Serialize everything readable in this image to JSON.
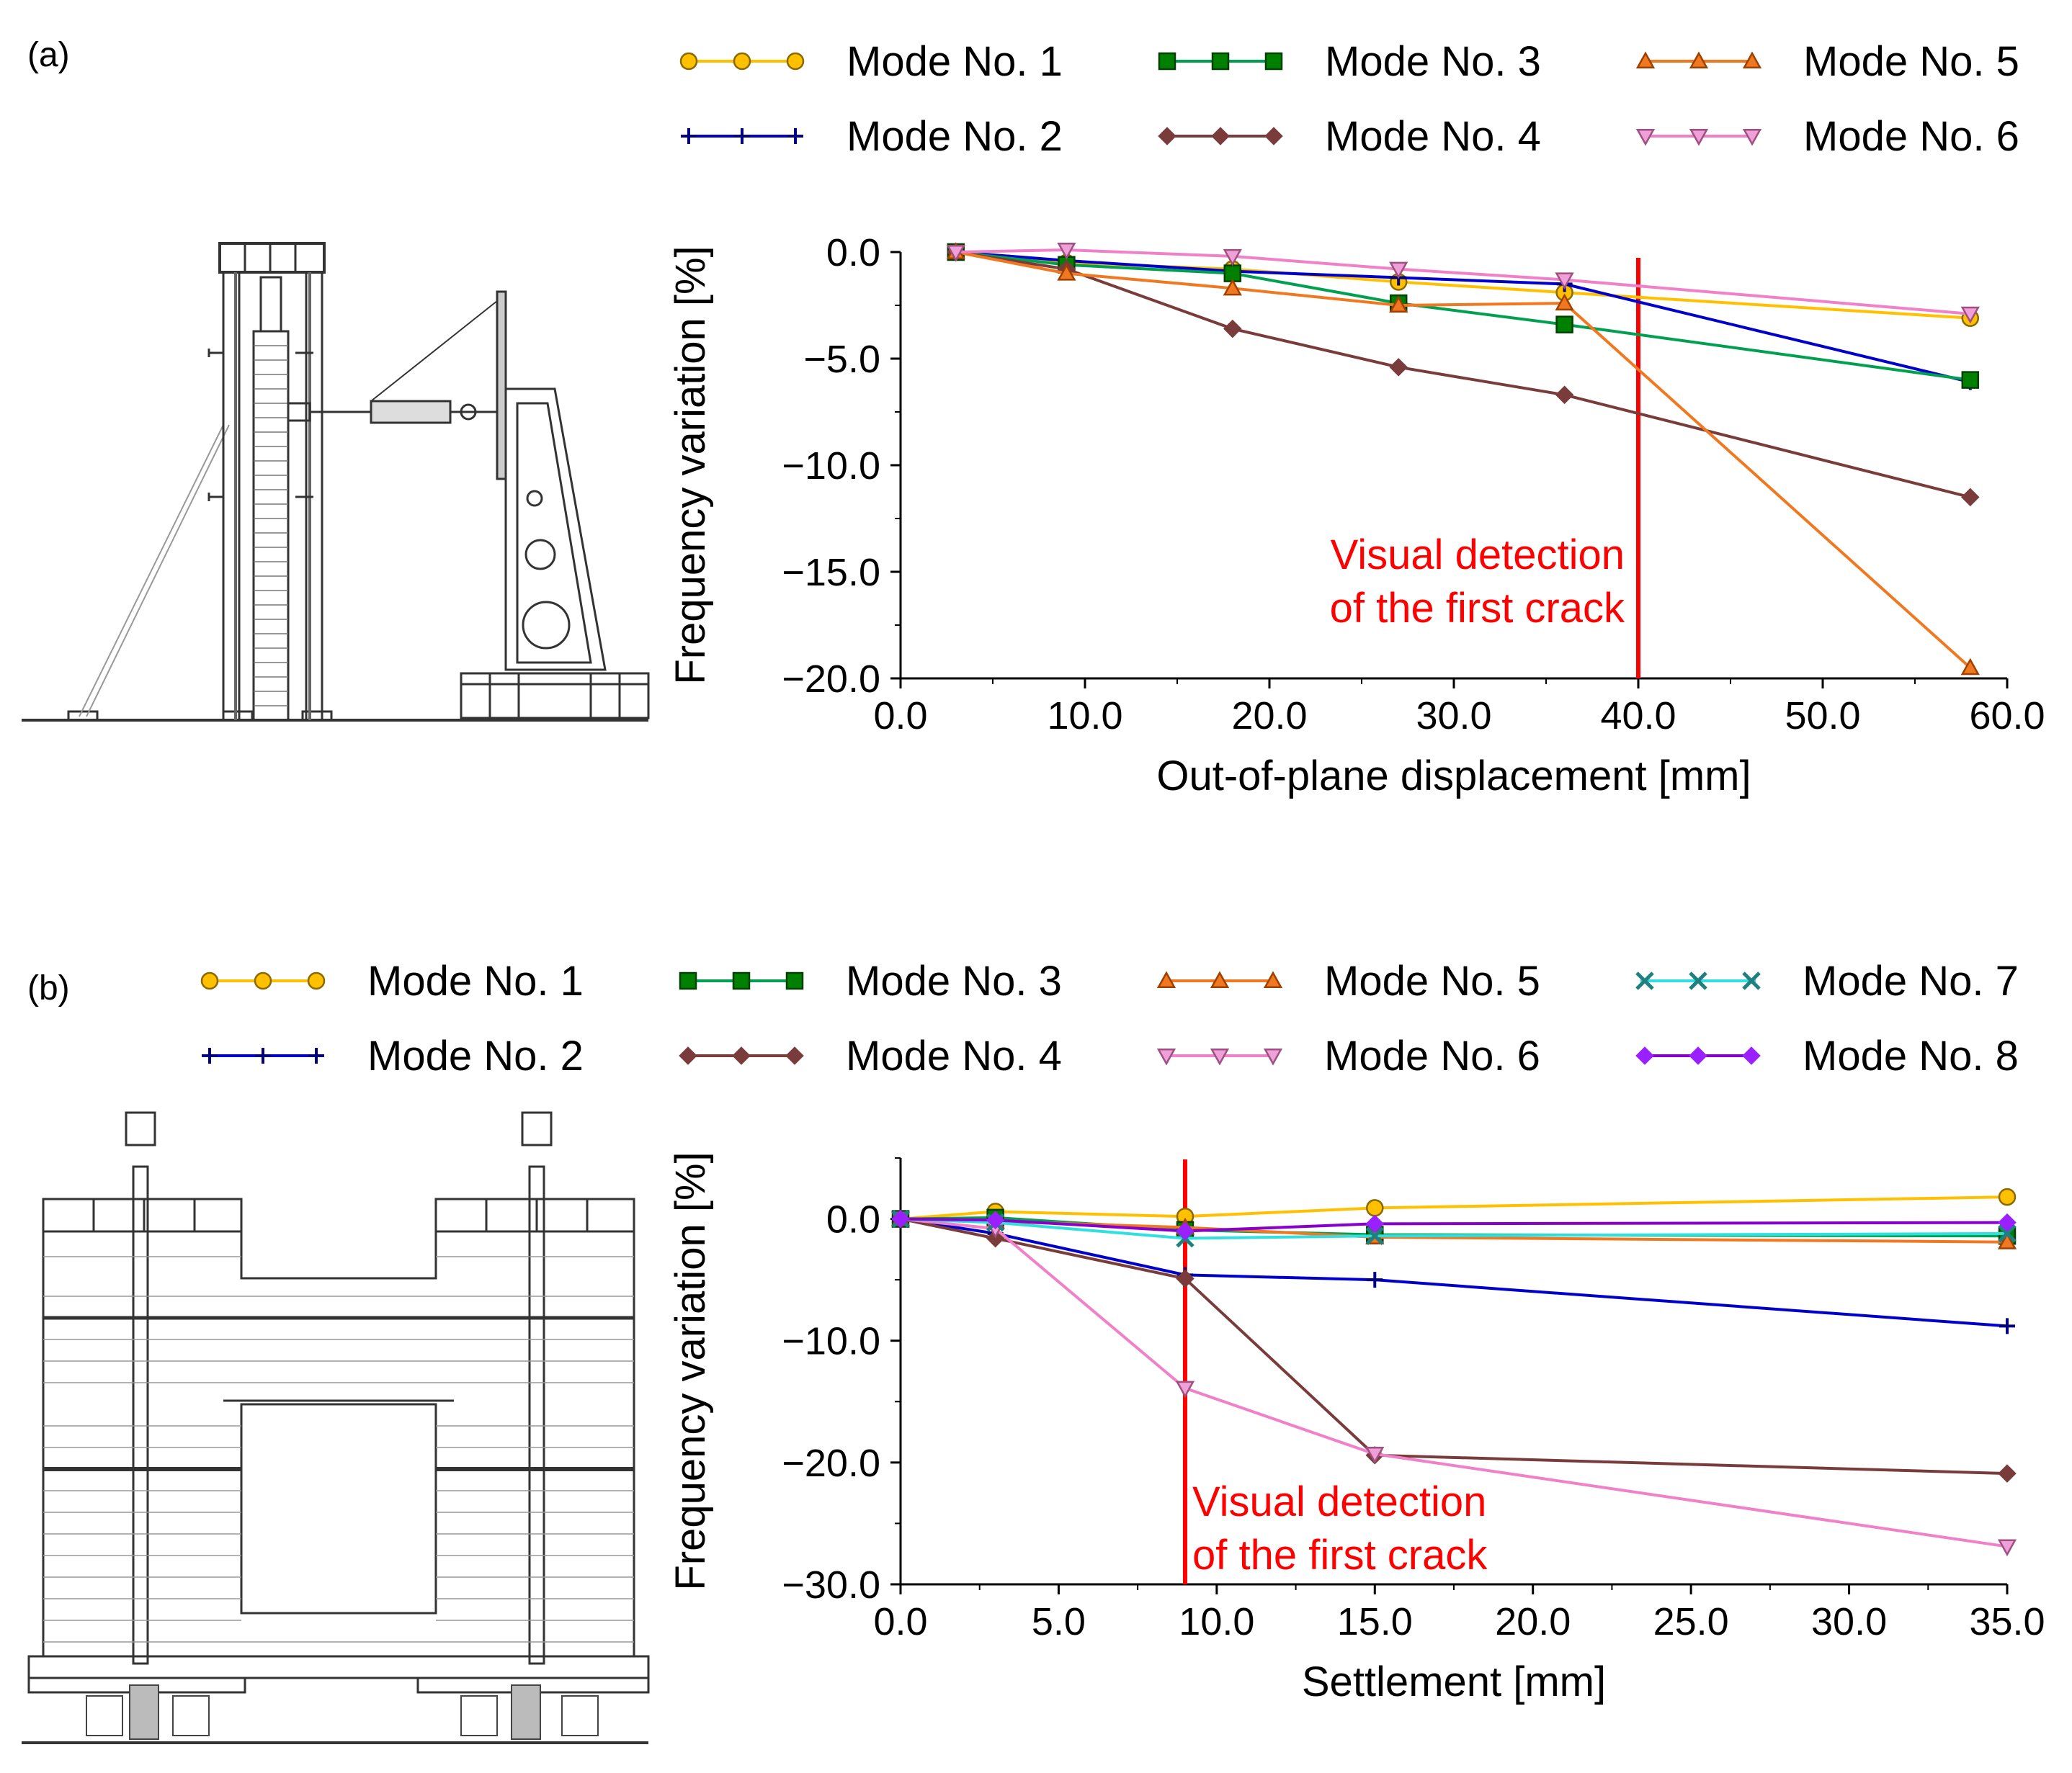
{
  "panels": {
    "a": {
      "label": "(a)"
    },
    "b": {
      "label": "(b)"
    }
  },
  "crack_annotation": {
    "line1": "Visual detection",
    "line2": "of the first crack",
    "color": "#ff0000"
  },
  "series_styles": {
    "Mode No. 1": {
      "color": "#ffc000",
      "fill": "#ffc000",
      "marker": "circle"
    },
    "Mode No. 2": {
      "color": "#0000cc",
      "fill": "#0000cc",
      "marker": "plus"
    },
    "Mode No. 3": {
      "color": "#00a050",
      "fill": "#008000",
      "marker": "square"
    },
    "Mode No. 4": {
      "color": "#7a3b3b",
      "fill": "#7a3b3b",
      "marker": "diamond"
    },
    "Mode No. 5": {
      "color": "#f07820",
      "fill": "#f07820",
      "marker": "triangle-up"
    },
    "Mode No. 6": {
      "color": "#f080c8",
      "fill": "#f0a0d8",
      "marker": "triangle-down"
    },
    "Mode No. 7": {
      "color": "#30e0e0",
      "fill": "#30e0e0",
      "marker": "x"
    },
    "Mode No. 8": {
      "color": "#8800cc",
      "fill": "#9a20ff",
      "marker": "diamond"
    }
  },
  "chart_data": [
    {
      "panel": "a",
      "type": "line",
      "xlabel": "Out-of-plane displacement [mm]",
      "ylabel": "Frequency variation [%]",
      "xlim": [
        0,
        60
      ],
      "ylim": [
        -20,
        0
      ],
      "xticks": [
        "0.0",
        "10.0",
        "20.0",
        "30.0",
        "40.0",
        "50.0",
        "60.0"
      ],
      "yticks": [
        "0.0",
        "-5.0",
        "-10.0",
        "-15.0",
        "-20.0"
      ],
      "x": [
        3,
        9,
        18,
        27,
        36,
        58
      ],
      "crack_x": 40,
      "legend": [
        "Mode No. 1",
        "Mode No. 3",
        "Mode No. 5",
        "Mode No. 2",
        "Mode No. 4",
        "Mode No. 6"
      ],
      "series": [
        {
          "name": "Mode No. 1",
          "values": [
            0,
            -0.5,
            -0.8,
            -1.4,
            -1.9,
            -3.1
          ]
        },
        {
          "name": "Mode No. 2",
          "values": [
            0,
            -0.4,
            -0.9,
            -1.2,
            -1.5,
            -6.1
          ]
        },
        {
          "name": "Mode No. 3",
          "values": [
            0,
            -0.6,
            -1.0,
            -2.4,
            -3.4,
            -6.0
          ]
        },
        {
          "name": "Mode No. 4",
          "values": [
            0,
            -0.8,
            -3.6,
            -5.4,
            -6.7,
            -11.5
          ]
        },
        {
          "name": "Mode No. 5",
          "values": [
            0,
            -1.0,
            -1.7,
            -2.5,
            -2.4,
            -19.5
          ]
        },
        {
          "name": "Mode No. 6",
          "values": [
            0,
            0.1,
            -0.2,
            -0.8,
            -1.3,
            -2.9
          ]
        }
      ]
    },
    {
      "panel": "b",
      "type": "line",
      "xlabel": "Settlement [mm]",
      "ylabel": "Frequency variation [%]",
      "xlim": [
        0,
        35
      ],
      "ylim": [
        -30,
        5
      ],
      "xticks": [
        "0.0",
        "5.0",
        "10.0",
        "15.0",
        "20.0",
        "25.0",
        "30.0",
        "35.0"
      ],
      "yticks": [
        "0.0",
        "-10.0",
        "-20.0",
        "-30.0"
      ],
      "x": [
        0,
        3,
        9,
        15,
        35
      ],
      "crack_x": 9,
      "legend": [
        "Mode No. 1",
        "Mode No. 3",
        "Mode No. 5",
        "Mode No. 7",
        "Mode No. 2",
        "Mode No. 4",
        "Mode No. 6",
        "Mode No. 8"
      ],
      "series": [
        {
          "name": "Mode No. 1",
          "values": [
            0,
            0.6,
            0.2,
            0.9,
            1.8
          ]
        },
        {
          "name": "Mode No. 2",
          "values": [
            0,
            -1.2,
            -4.6,
            -5.0,
            -8.8
          ]
        },
        {
          "name": "Mode No. 3",
          "values": [
            0,
            0.1,
            -0.9,
            -1.3,
            -1.4
          ]
        },
        {
          "name": "Mode No. 4",
          "values": [
            0,
            -1.6,
            -4.9,
            -19.4,
            -20.9
          ]
        },
        {
          "name": "Mode No. 5",
          "values": [
            0,
            -0.2,
            -0.7,
            -1.5,
            -1.9
          ]
        },
        {
          "name": "Mode No. 6",
          "values": [
            0,
            -0.8,
            -13.9,
            -19.3,
            -26.9
          ]
        },
        {
          "name": "Mode No. 7",
          "values": [
            0,
            -0.3,
            -1.6,
            -1.4,
            -1.2
          ]
        },
        {
          "name": "Mode No. 8",
          "values": [
            0,
            -0.1,
            -1.0,
            -0.4,
            -0.3
          ]
        }
      ]
    }
  ]
}
